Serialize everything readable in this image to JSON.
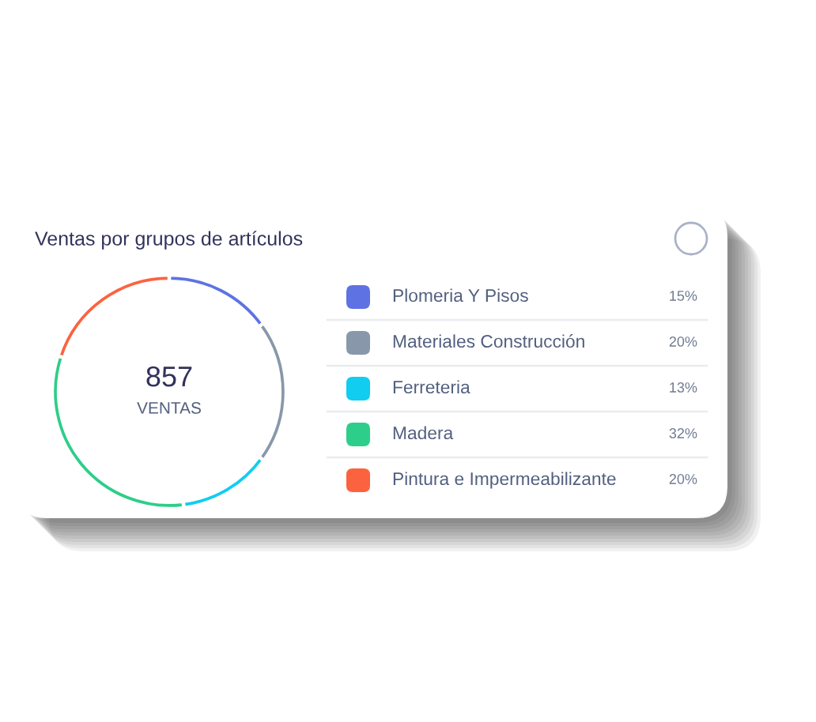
{
  "chart_data": {
    "type": "donut",
    "title": "Ventas por grupos de artículos",
    "categories": [
      "Plomeria Y Pisos",
      "Materiales Construcción",
      "Ferreteria",
      "Madera",
      "Pintura e Impermeabilizante"
    ],
    "values": [
      15,
      20,
      13,
      32,
      20
    ],
    "colors": [
      "#5e72e4",
      "#8898aa",
      "#11cdef",
      "#2dce89",
      "#fb6340"
    ],
    "value_labels": [
      "15%",
      "20%",
      "13%",
      "32%",
      "20%"
    ],
    "annotations": [
      "857",
      "VENTAS"
    ],
    "legend": "right"
  }
}
